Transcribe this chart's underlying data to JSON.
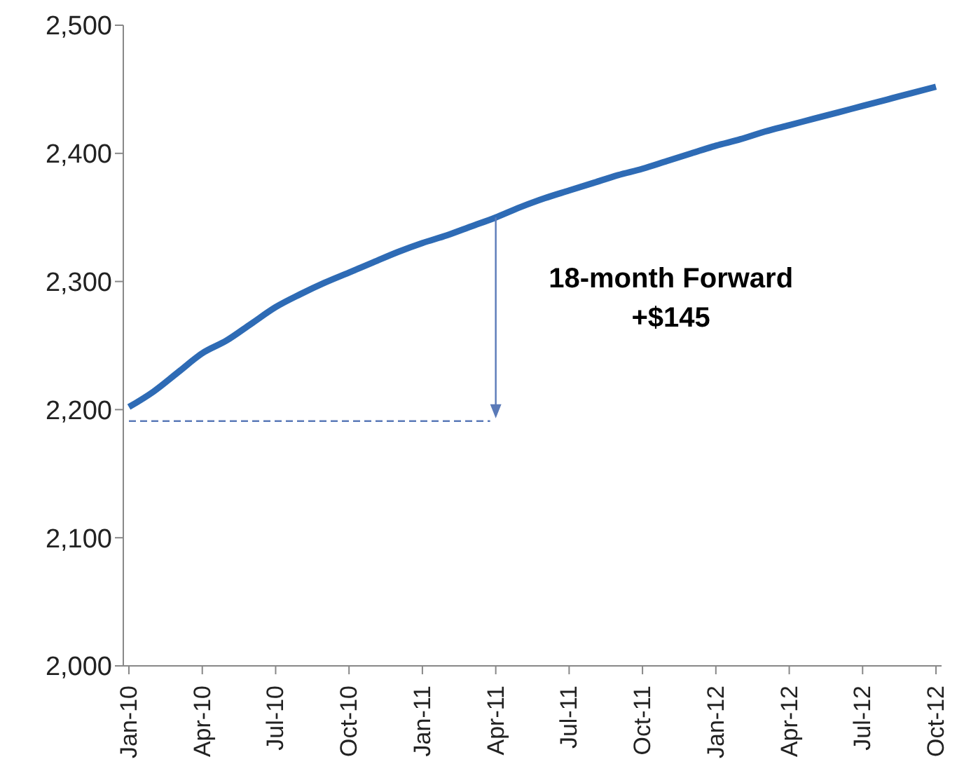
{
  "chart_data": {
    "type": "line",
    "categories": [
      "Jan-10",
      null,
      null,
      "Apr-10",
      null,
      null,
      "Jul-10",
      null,
      null,
      "Oct-10",
      null,
      null,
      "Jan-11",
      null,
      null,
      "Apr-11",
      null,
      null,
      "Jul-11",
      null,
      null,
      "Oct-11",
      null,
      null,
      "Jan-12",
      null,
      null,
      "Apr-12",
      null,
      null,
      "Jul-12",
      null,
      null,
      "Oct-12"
    ],
    "series": [
      {
        "color": "#2e6bb5",
        "values": [
          2202,
          2214,
          2229,
          2244,
          2254,
          2267,
          2280,
          2290,
          2299,
          2307,
          2315,
          2323,
          2330,
          2336,
          2343,
          2350,
          2358,
          2365,
          2371,
          2377,
          2383,
          2388,
          2394,
          2400,
          2406,
          2411,
          2417,
          2422,
          2427,
          2432,
          2437,
          2442,
          2447,
          2452
        ]
      }
    ],
    "ylim": [
      2000,
      2500
    ],
    "yticks": [
      {
        "value": 2000,
        "label": "2,000"
      },
      {
        "value": 2100,
        "label": "2,100"
      },
      {
        "value": 2200,
        "label": "2,200"
      },
      {
        "value": 2300,
        "label": "2,300"
      },
      {
        "value": 2400,
        "label": "2,400"
      },
      {
        "value": 2500,
        "label": "2,500"
      }
    ],
    "marker": "none",
    "line_style": "solid",
    "annotations": [
      {
        "text": "18-month Forward\n+$145",
        "x": "Apr-11",
        "y": 2350
      }
    ]
  }
}
